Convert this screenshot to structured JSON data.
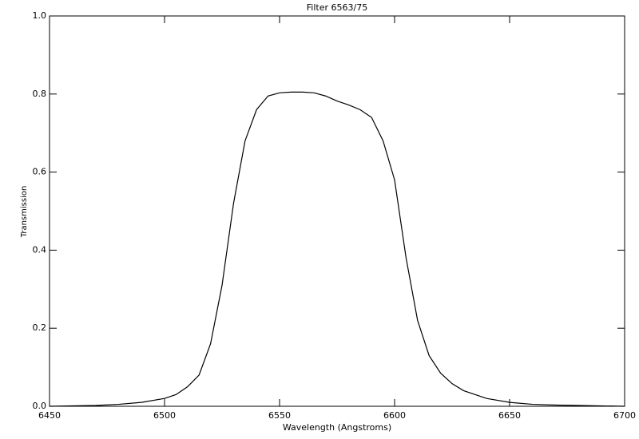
{
  "chart_data": {
    "type": "line",
    "title": "Filter 6563/75",
    "x_label": "Wavelength (Angstroms)",
    "y_label": "Transmission",
    "xlim": [
      6450,
      6700
    ],
    "ylim": [
      0,
      1
    ],
    "xticks": [
      6450,
      6500,
      6550,
      6600,
      6650,
      6700
    ],
    "yticks": [
      {
        "value": 0,
        "label": "0.0"
      },
      0.2,
      0.4,
      0.6,
      0.8,
      {
        "value": 1,
        "label": "1.0"
      }
    ],
    "grid": false,
    "series": [
      {
        "color": "#000000",
        "x": [
          6450,
          6470,
          6480,
          6490,
          6500,
          6505,
          6510,
          6515,
          6520,
          6525,
          6530,
          6535,
          6540,
          6545,
          6550,
          6555,
          6560,
          6565,
          6570,
          6575,
          6580,
          6585,
          6590,
          6595,
          6600,
          6605,
          6610,
          6615,
          6620,
          6625,
          6630,
          6640,
          6650,
          6660,
          6670,
          6680,
          6700
        ],
        "values": [
          0,
          0.002,
          0.005,
          0.01,
          0.02,
          0.03,
          0.05,
          0.08,
          0.16,
          0.31,
          0.52,
          0.68,
          0.76,
          0.795,
          0.803,
          0.805,
          0.805,
          0.803,
          0.795,
          0.782,
          0.772,
          0.76,
          0.74,
          0.68,
          0.58,
          0.38,
          0.22,
          0.13,
          0.085,
          0.058,
          0.04,
          0.02,
          0.01,
          0.005,
          0.003,
          0.002,
          0
        ]
      }
    ]
  }
}
